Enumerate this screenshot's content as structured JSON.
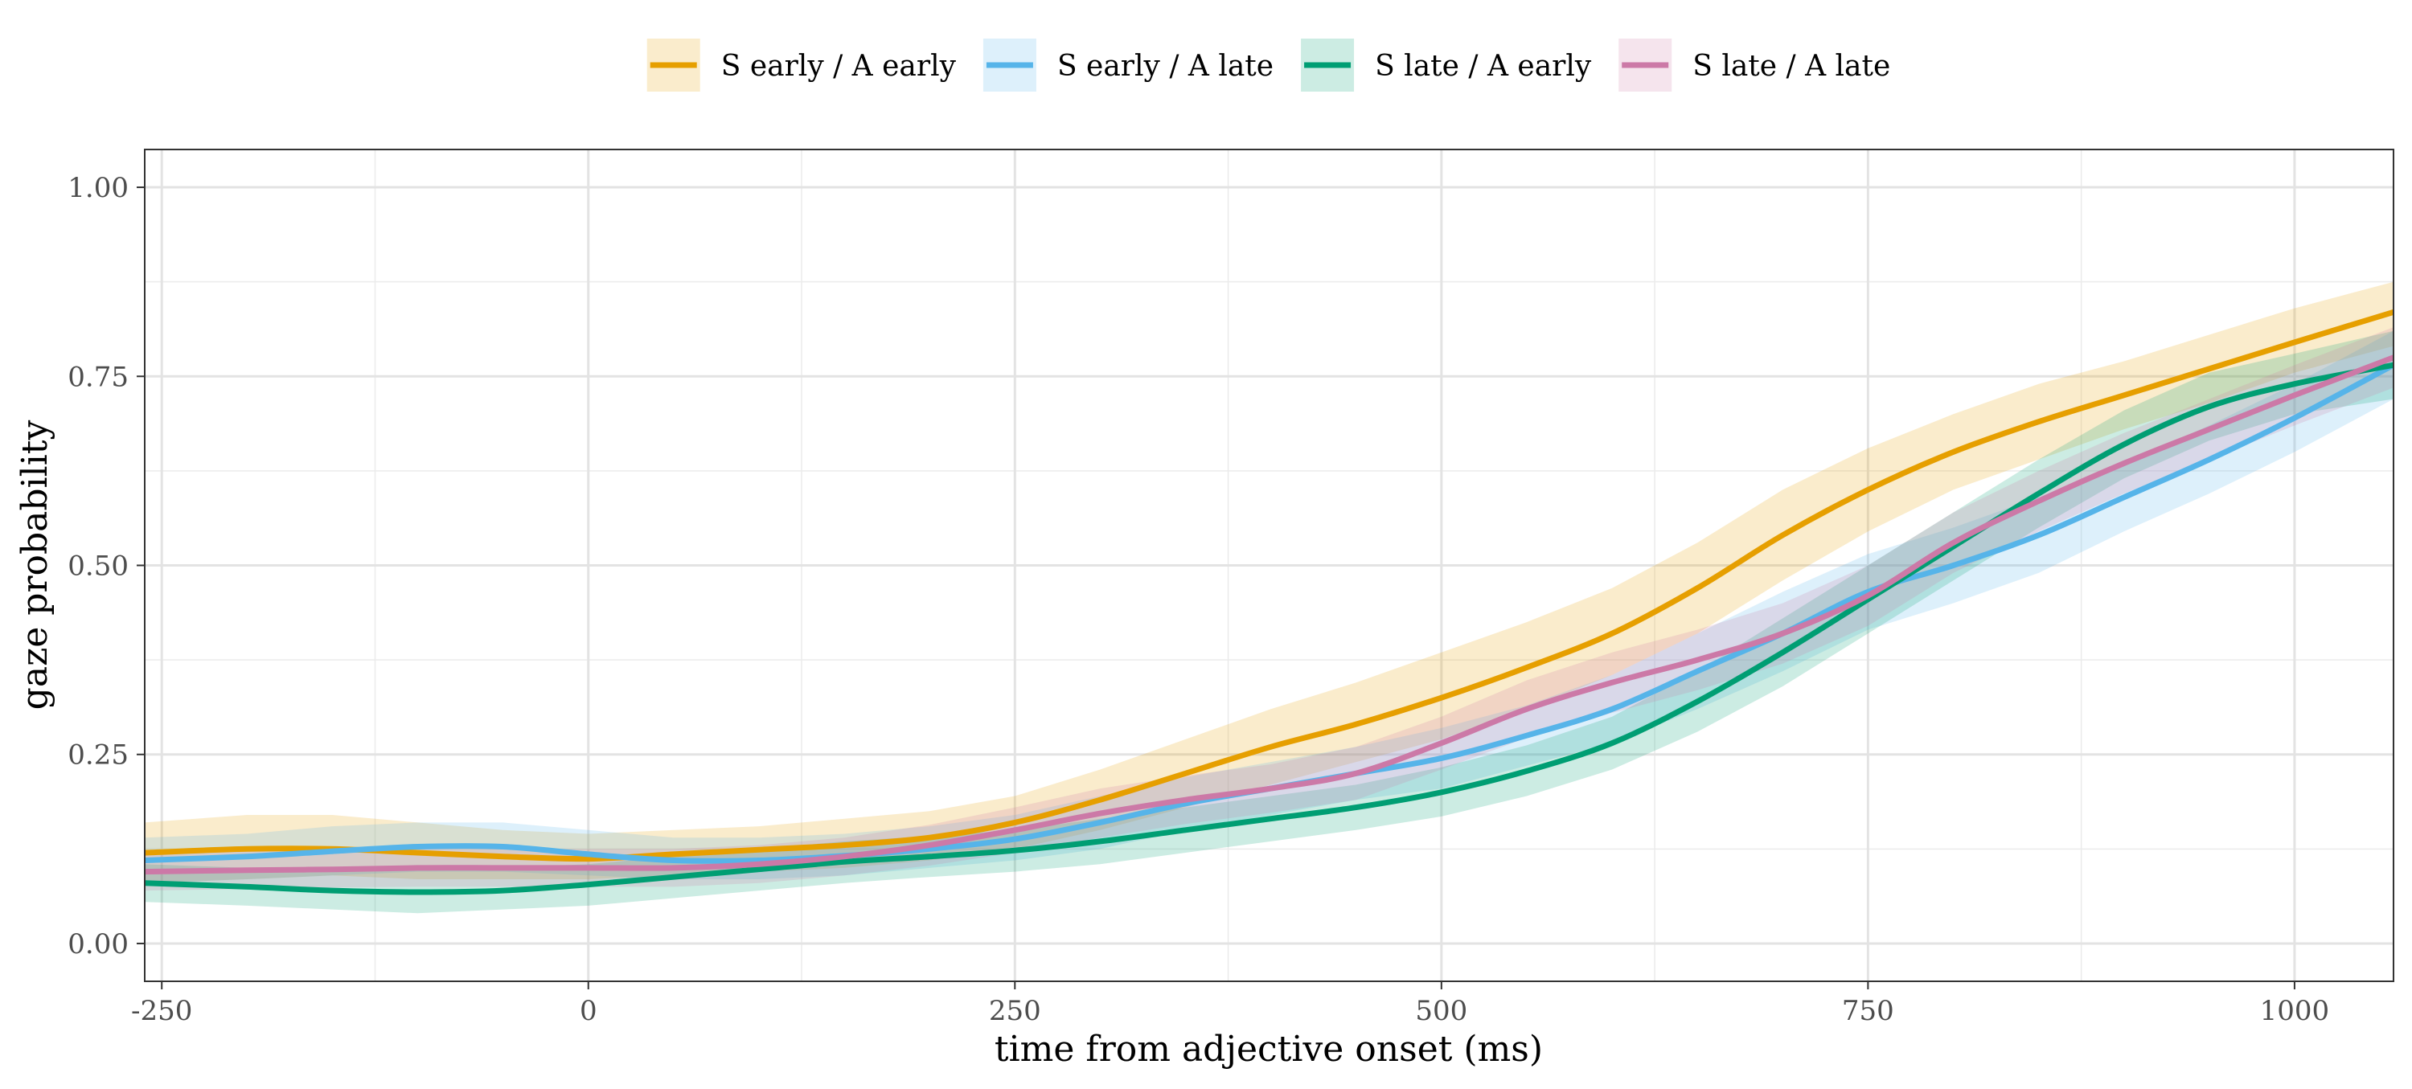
{
  "chart_data": {
    "type": "line",
    "title": "",
    "xlabel": "time from adjective onset (ms)",
    "ylabel": "gaze probability",
    "xlim": [
      -260,
      1058
    ],
    "ylim": [
      -0.05,
      1.05
    ],
    "x_ticks": [
      -250,
      0,
      250,
      500,
      750,
      1000
    ],
    "x_tick_labels": [
      "-250",
      "0",
      "250",
      "500",
      "750",
      "1000"
    ],
    "y_ticks": [
      0,
      0.25,
      0.5,
      0.75,
      1.0
    ],
    "y_tick_labels": [
      "0.00",
      "0.25",
      "0.50",
      "0.75",
      "1.00"
    ],
    "grid": true,
    "legend_position": "top",
    "x": [
      -260,
      -200,
      -150,
      -100,
      -50,
      0,
      50,
      100,
      150,
      200,
      250,
      300,
      350,
      400,
      450,
      500,
      550,
      600,
      650,
      700,
      750,
      800,
      850,
      900,
      950,
      1000,
      1058
    ],
    "series": [
      {
        "name": "S early / A early",
        "color": "#E69F00",
        "values": [
          0.12,
          0.125,
          0.125,
          0.12,
          0.115,
          0.112,
          0.118,
          0.124,
          0.13,
          0.14,
          0.16,
          0.19,
          0.225,
          0.26,
          0.29,
          0.325,
          0.365,
          0.41,
          0.47,
          0.54,
          0.6,
          0.65,
          0.69,
          0.725,
          0.76,
          0.795,
          0.835
        ],
        "lower": [
          0.08,
          0.085,
          0.09,
          0.085,
          0.085,
          0.085,
          0.09,
          0.095,
          0.1,
          0.11,
          0.125,
          0.15,
          0.18,
          0.21,
          0.24,
          0.27,
          0.31,
          0.355,
          0.41,
          0.48,
          0.545,
          0.6,
          0.64,
          0.68,
          0.715,
          0.755,
          0.79
        ],
        "upper": [
          0.16,
          0.17,
          0.17,
          0.16,
          0.15,
          0.145,
          0.15,
          0.155,
          0.165,
          0.175,
          0.195,
          0.23,
          0.27,
          0.31,
          0.345,
          0.385,
          0.425,
          0.47,
          0.53,
          0.6,
          0.655,
          0.7,
          0.74,
          0.77,
          0.805,
          0.84,
          0.875
        ]
      },
      {
        "name": "S early / A late",
        "color": "#56B4E9",
        "values": [
          0.11,
          0.115,
          0.122,
          0.128,
          0.128,
          0.118,
          0.11,
          0.11,
          0.116,
          0.125,
          0.138,
          0.16,
          0.185,
          0.205,
          0.225,
          0.245,
          0.275,
          0.31,
          0.36,
          0.41,
          0.465,
          0.5,
          0.54,
          0.59,
          0.64,
          0.695,
          0.765
        ],
        "lower": [
          0.08,
          0.085,
          0.09,
          0.095,
          0.095,
          0.09,
          0.085,
          0.085,
          0.09,
          0.1,
          0.11,
          0.125,
          0.15,
          0.17,
          0.19,
          0.205,
          0.235,
          0.265,
          0.31,
          0.36,
          0.415,
          0.45,
          0.49,
          0.545,
          0.595,
          0.65,
          0.72
        ],
        "upper": [
          0.14,
          0.145,
          0.155,
          0.16,
          0.16,
          0.15,
          0.14,
          0.14,
          0.145,
          0.155,
          0.17,
          0.195,
          0.22,
          0.24,
          0.26,
          0.285,
          0.315,
          0.355,
          0.41,
          0.465,
          0.515,
          0.55,
          0.59,
          0.635,
          0.685,
          0.74,
          0.81
        ]
      },
      {
        "name": "S late / A early",
        "color": "#009E73",
        "values": [
          0.08,
          0.075,
          0.07,
          0.068,
          0.07,
          0.078,
          0.088,
          0.098,
          0.108,
          0.115,
          0.123,
          0.135,
          0.15,
          0.165,
          0.18,
          0.2,
          0.228,
          0.265,
          0.32,
          0.385,
          0.455,
          0.525,
          0.595,
          0.66,
          0.71,
          0.74,
          0.765
        ],
        "lower": [
          0.055,
          0.05,
          0.045,
          0.04,
          0.045,
          0.05,
          0.06,
          0.07,
          0.08,
          0.088,
          0.095,
          0.105,
          0.12,
          0.135,
          0.15,
          0.168,
          0.195,
          0.23,
          0.28,
          0.34,
          0.41,
          0.48,
          0.55,
          0.615,
          0.665,
          0.7,
          0.72
        ],
        "upper": [
          0.105,
          0.1,
          0.1,
          0.1,
          0.1,
          0.105,
          0.115,
          0.125,
          0.135,
          0.142,
          0.15,
          0.165,
          0.18,
          0.195,
          0.21,
          0.233,
          0.262,
          0.3,
          0.36,
          0.43,
          0.5,
          0.57,
          0.64,
          0.705,
          0.755,
          0.78,
          0.81
        ]
      },
      {
        "name": "S late / A late",
        "color": "#CC79A7",
        "values": [
          0.095,
          0.097,
          0.098,
          0.1,
          0.1,
          0.1,
          0.1,
          0.105,
          0.115,
          0.13,
          0.15,
          0.172,
          0.19,
          0.205,
          0.225,
          0.265,
          0.31,
          0.345,
          0.375,
          0.41,
          0.46,
          0.53,
          0.585,
          0.635,
          0.68,
          0.725,
          0.775
        ],
        "lower": [
          0.07,
          0.072,
          0.074,
          0.075,
          0.075,
          0.075,
          0.075,
          0.08,
          0.09,
          0.103,
          0.12,
          0.14,
          0.158,
          0.173,
          0.19,
          0.23,
          0.272,
          0.305,
          0.335,
          0.37,
          0.42,
          0.49,
          0.545,
          0.595,
          0.64,
          0.685,
          0.735
        ],
        "upper": [
          0.12,
          0.122,
          0.124,
          0.125,
          0.125,
          0.125,
          0.125,
          0.13,
          0.14,
          0.157,
          0.18,
          0.205,
          0.222,
          0.237,
          0.26,
          0.3,
          0.348,
          0.385,
          0.415,
          0.45,
          0.5,
          0.57,
          0.625,
          0.675,
          0.72,
          0.765,
          0.815
        ]
      }
    ]
  }
}
